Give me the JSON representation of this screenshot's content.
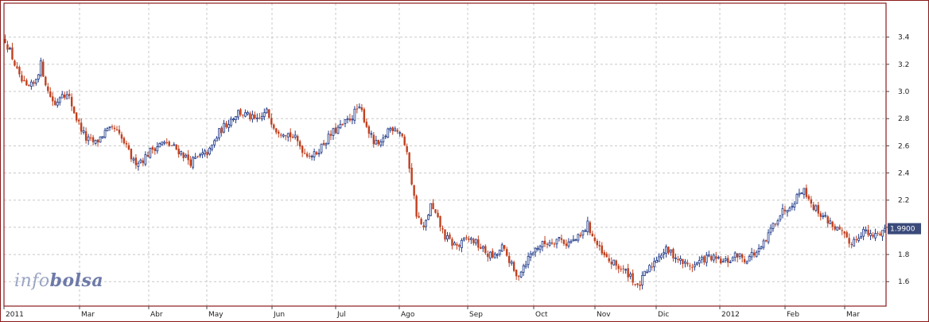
{
  "watermark": {
    "left": "info",
    "right": "bolsa"
  },
  "last_price_label": "1.9900",
  "chart_data": {
    "type": "candlestick",
    "x_labels": [
      "2011",
      "Mar",
      "Abr",
      "May",
      "Jun",
      "Jul",
      "Ago",
      "Sep",
      "Oct",
      "Nov",
      "Dic",
      "2012",
      "Feb",
      "Mar"
    ],
    "y_ticks": [
      1.6,
      1.8,
      2.0,
      2.2,
      2.4,
      2.6,
      2.8,
      3.0,
      3.2,
      3.4
    ],
    "y_tick_labels": [
      "1.6",
      "1.8",
      "2.0",
      "2.2",
      "2.4",
      "2.6",
      "2.8",
      "3.0",
      "3.2",
      "3.4"
    ],
    "ylim": [
      1.42,
      3.65
    ],
    "last_price": 1.99,
    "grid": true,
    "colors": {
      "up": "#1f3a8a",
      "down": "#c0401f",
      "frame": "#8b1a1a",
      "grid": "#c8c8c8",
      "price_tag": "#3a4a7a"
    },
    "close_path": [
      [
        0,
        3.38
      ],
      [
        3,
        3.25
      ],
      [
        6,
        3.1
      ],
      [
        9,
        3.02
      ],
      [
        12,
        3.05
      ],
      [
        15,
        3.2
      ],
      [
        18,
        3.0
      ],
      [
        21,
        2.9
      ],
      [
        24,
        3.0
      ],
      [
        27,
        2.95
      ],
      [
        30,
        2.8
      ],
      [
        34,
        2.65
      ],
      [
        38,
        2.62
      ],
      [
        42,
        2.7
      ],
      [
        46,
        2.72
      ],
      [
        50,
        2.62
      ],
      [
        54,
        2.48
      ],
      [
        58,
        2.5
      ],
      [
        62,
        2.58
      ],
      [
        66,
        2.62
      ],
      [
        70,
        2.6
      ],
      [
        74,
        2.55
      ],
      [
        78,
        2.48
      ],
      [
        82,
        2.52
      ],
      [
        86,
        2.56
      ],
      [
        90,
        2.7
      ],
      [
        94,
        2.78
      ],
      [
        98,
        2.85
      ],
      [
        102,
        2.82
      ],
      [
        106,
        2.78
      ],
      [
        110,
        2.85
      ],
      [
        114,
        2.72
      ],
      [
        118,
        2.7
      ],
      [
        122,
        2.65
      ],
      [
        126,
        2.55
      ],
      [
        130,
        2.53
      ],
      [
        134,
        2.62
      ],
      [
        138,
        2.7
      ],
      [
        142,
        2.75
      ],
      [
        146,
        2.82
      ],
      [
        148,
        2.87
      ],
      [
        150,
        2.85
      ],
      [
        152,
        2.75
      ],
      [
        155,
        2.62
      ],
      [
        158,
        2.6
      ],
      [
        161,
        2.72
      ],
      [
        164,
        2.74
      ],
      [
        167,
        2.68
      ],
      [
        170,
        2.45
      ],
      [
        173,
        2.1
      ],
      [
        176,
        1.98
      ],
      [
        179,
        2.16
      ],
      [
        182,
        2.05
      ],
      [
        185,
        1.93
      ],
      [
        188,
        1.88
      ],
      [
        191,
        1.86
      ],
      [
        194,
        1.92
      ],
      [
        197,
        1.9
      ],
      [
        200,
        1.85
      ],
      [
        203,
        1.8
      ],
      [
        206,
        1.78
      ],
      [
        209,
        1.85
      ],
      [
        212,
        1.76
      ],
      [
        215,
        1.63
      ],
      [
        218,
        1.72
      ],
      [
        221,
        1.8
      ],
      [
        224,
        1.86
      ],
      [
        227,
        1.88
      ],
      [
        230,
        1.9
      ],
      [
        233,
        1.92
      ],
      [
        236,
        1.88
      ],
      [
        239,
        1.9
      ],
      [
        242,
        1.93
      ],
      [
        245,
        2.02
      ],
      [
        248,
        1.9
      ],
      [
        251,
        1.8
      ],
      [
        254,
        1.75
      ],
      [
        257,
        1.72
      ],
      [
        260,
        1.68
      ],
      [
        263,
        1.65
      ],
      [
        266,
        1.55
      ],
      [
        269,
        1.65
      ],
      [
        272,
        1.72
      ],
      [
        275,
        1.8
      ],
      [
        278,
        1.83
      ],
      [
        281,
        1.8
      ],
      [
        284,
        1.75
      ],
      [
        287,
        1.72
      ],
      [
        290,
        1.72
      ],
      [
        293,
        1.76
      ],
      [
        296,
        1.78
      ],
      [
        299,
        1.76
      ],
      [
        302,
        1.74
      ],
      [
        305,
        1.76
      ],
      [
        308,
        1.8
      ],
      [
        311,
        1.76
      ],
      [
        314,
        1.8
      ],
      [
        317,
        1.82
      ],
      [
        320,
        1.9
      ],
      [
        323,
        2.02
      ],
      [
        326,
        2.1
      ],
      [
        329,
        2.15
      ],
      [
        332,
        2.2
      ],
      [
        335,
        2.28
      ],
      [
        337,
        2.25
      ],
      [
        340,
        2.15
      ],
      [
        343,
        2.1
      ],
      [
        346,
        2.05
      ],
      [
        349,
        2.0
      ],
      [
        352,
        1.95
      ],
      [
        355,
        1.88
      ],
      [
        358,
        1.92
      ],
      [
        361,
        1.98
      ],
      [
        364,
        1.93
      ],
      [
        367,
        1.95
      ],
      [
        370,
        1.99
      ]
    ]
  }
}
